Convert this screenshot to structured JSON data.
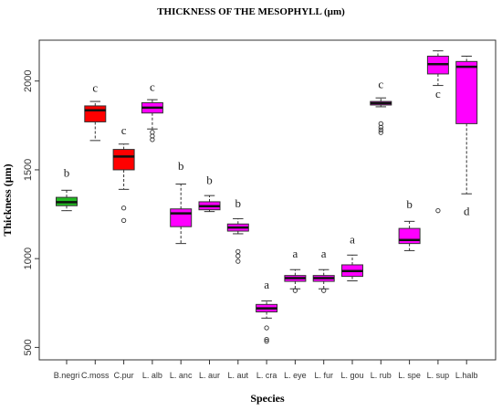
{
  "chart_data": {
    "type": "boxplot",
    "title": "THICKNESS OF THE MESOPHYLL (µm)",
    "xlabel": "Species",
    "ylabel": "Thickness (µm)",
    "ylim": [
      430,
      2230
    ],
    "yticks": [
      500,
      1000,
      1500,
      2000
    ],
    "grid": false,
    "colors": {
      "green": "#22bb22",
      "red": "#ff0000",
      "magenta": "#ff00ff",
      "outline": "#333333"
    },
    "categories": [
      "B.negri",
      "C.moss",
      "C.pur",
      "L. alb",
      "L. anc",
      "L. aur",
      "L. aut",
      "L. cra",
      "L. eye",
      "L. fur",
      "L. gou",
      "L. rub",
      "L. spe",
      "L. sup",
      "L.halb"
    ],
    "boxes": [
      {
        "name": "B.negri",
        "color": "green",
        "whisker_low": 1270,
        "q1": 1298,
        "median": 1318,
        "q3": 1345,
        "whisker_high": 1385,
        "outliers": [],
        "letter": "b",
        "letter_y": 1460
      },
      {
        "name": "C.moss",
        "color": "red",
        "whisker_low": 1665,
        "q1": 1770,
        "median": 1835,
        "q3": 1860,
        "whisker_high": 1885,
        "outliers": [],
        "letter": "c",
        "letter_y": 1940
      },
      {
        "name": "C.pur",
        "color": "red",
        "whisker_low": 1390,
        "q1": 1500,
        "median": 1575,
        "q3": 1615,
        "whisker_high": 1645,
        "outliers": [
          1285,
          1215
        ],
        "letter": "c",
        "letter_y": 1700
      },
      {
        "name": "L. alb",
        "color": "magenta",
        "whisker_low": 1730,
        "q1": 1820,
        "median": 1850,
        "q3": 1878,
        "whisker_high": 1895,
        "outliers": [
          1712,
          1690,
          1670
        ],
        "letter": "c",
        "letter_y": 1945
      },
      {
        "name": "L. anc",
        "color": "magenta",
        "whisker_low": 1085,
        "q1": 1180,
        "median": 1255,
        "q3": 1280,
        "whisker_high": 1420,
        "outliers": [],
        "letter": "b",
        "letter_y": 1500
      },
      {
        "name": "L. aur",
        "color": "magenta",
        "whisker_low": 1265,
        "q1": 1275,
        "median": 1295,
        "q3": 1320,
        "whisker_high": 1355,
        "outliers": [],
        "letter": "b",
        "letter_y": 1420
      },
      {
        "name": "L. aut",
        "color": "magenta",
        "whisker_low": 1140,
        "q1": 1155,
        "median": 1175,
        "q3": 1195,
        "whisker_high": 1225,
        "outliers": [
          1040,
          1015,
          985
        ],
        "letter": "b",
        "letter_y": 1290
      },
      {
        "name": "L. cra",
        "color": "magenta",
        "whisker_low": 665,
        "q1": 700,
        "median": 720,
        "q3": 742,
        "whisker_high": 762,
        "outliers": [
          610,
          545,
          535
        ],
        "letter": "a",
        "letter_y": 830
      },
      {
        "name": "L. eye",
        "color": "magenta",
        "whisker_low": 830,
        "q1": 872,
        "median": 890,
        "q3": 905,
        "whisker_high": 938,
        "outliers": [
          820
        ],
        "letter": "a",
        "letter_y": 1005
      },
      {
        "name": "L. fur",
        "color": "magenta",
        "whisker_low": 830,
        "q1": 872,
        "median": 890,
        "q3": 905,
        "whisker_high": 938,
        "outliers": [
          820
        ],
        "letter": "a",
        "letter_y": 1005
      },
      {
        "name": "L. gou",
        "color": "magenta",
        "whisker_low": 875,
        "q1": 900,
        "median": 930,
        "q3": 965,
        "whisker_high": 1020,
        "outliers": [],
        "letter": "a",
        "letter_y": 1085
      },
      {
        "name": "L. rub",
        "color": "magenta",
        "whisker_low": 1855,
        "q1": 1865,
        "median": 1875,
        "q3": 1885,
        "whisker_high": 1905,
        "outliers": [
          1760,
          1740,
          1725,
          1710
        ],
        "letter": "c",
        "letter_y": 1960
      },
      {
        "name": "L. spe",
        "color": "magenta",
        "whisker_low": 1045,
        "q1": 1085,
        "median": 1105,
        "q3": 1170,
        "whisker_high": 1210,
        "outliers": [],
        "letter": "b",
        "letter_y": 1285
      },
      {
        "name": "L. sup",
        "color": "magenta",
        "whisker_low": 1975,
        "q1": 2040,
        "median": 2095,
        "q3": 2140,
        "whisker_high": 2170,
        "outliers": [
          1270
        ],
        "letter": "c",
        "letter_y": 1905
      },
      {
        "name": "L.halb",
        "color": "magenta",
        "whisker_low": 1365,
        "q1": 1760,
        "median": 2080,
        "q3": 2110,
        "whisker_high": 2140,
        "outliers": [],
        "letter": "d",
        "letter_y": 1245
      }
    ]
  }
}
